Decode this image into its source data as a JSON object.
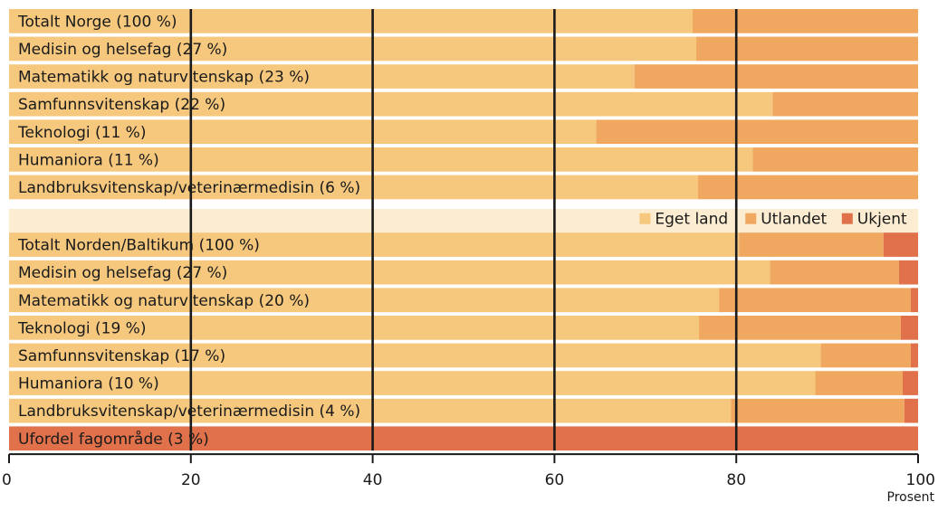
{
  "chart_data": {
    "type": "bar",
    "orientation": "horizontal",
    "stacked": true,
    "xlabel": "Prosent",
    "xlim": [
      0,
      100
    ],
    "xticks": [
      0,
      20,
      40,
      60,
      80,
      100
    ],
    "grid": "vertical",
    "legend_position": "right, in gap row",
    "series": [
      {
        "name": "Eget land",
        "color": "#f5c87e"
      },
      {
        "name": "Utlandet",
        "color": "#f0a860"
      },
      {
        "name": "Ukjent",
        "color": "#e0714b"
      }
    ],
    "groups": [
      {
        "rows": [
          {
            "label": "Totalt Norge (100 %)",
            "values": [
              75.2,
              24.8,
              0
            ]
          },
          {
            "label": "Medisin og helsefag (27 %)",
            "values": [
              75.6,
              24.4,
              0
            ]
          },
          {
            "label": "Matematikk og naturvitenskap (23 %)",
            "values": [
              68.8,
              31.2,
              0
            ]
          },
          {
            "label": "Samfunnsvitenskap (22 %)",
            "values": [
              84.0,
              16.0,
              0
            ]
          },
          {
            "label": "Teknologi (11 %)",
            "values": [
              64.6,
              35.4,
              0
            ]
          },
          {
            "label": "Humaniora (11 %)",
            "values": [
              81.8,
              18.2,
              0
            ]
          },
          {
            "label": "Landbruksvitenskap/veterinærmedisin (6 %)",
            "values": [
              75.8,
              24.2,
              0
            ]
          }
        ]
      },
      {
        "rows": [
          {
            "label": "Totalt Norden/Baltikum (100 %)",
            "values": [
              80.3,
              15.9,
              3.8
            ]
          },
          {
            "label": "Medisin og helsefag (27 %)",
            "values": [
              83.7,
              14.2,
              2.1
            ]
          },
          {
            "label": "Matematikk og naturvitenskap (20 %)",
            "values": [
              78.1,
              21.1,
              0.8
            ]
          },
          {
            "label": "Teknologi (19 %)",
            "values": [
              75.9,
              22.2,
              1.9
            ]
          },
          {
            "label": "Samfunnsvitenskap (17 %)",
            "values": [
              89.3,
              9.9,
              0.8
            ]
          },
          {
            "label": "Humaniora (10 %)",
            "values": [
              88.7,
              9.6,
              1.7
            ]
          },
          {
            "label": "Landbruksvitenskap/veterinærmedisin (4 %)",
            "values": [
              79.4,
              19.1,
              1.5
            ]
          },
          {
            "label": "Ufordel fagområde (3 %)",
            "values": [
              0,
              0,
              100
            ]
          }
        ]
      }
    ]
  }
}
